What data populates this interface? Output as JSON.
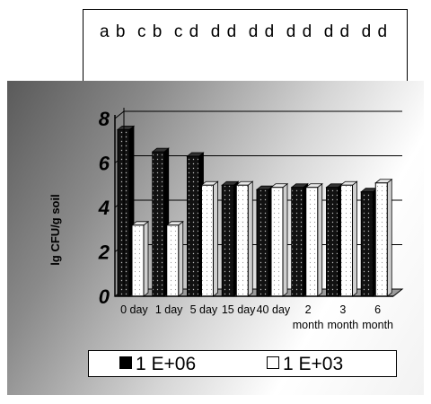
{
  "letters": "a b  c b  c d  d d  d d  d d  d d  d d",
  "chart_data": {
    "type": "bar",
    "ylabel": "lg CFU/g soil",
    "yticks": [
      "0",
      "2",
      "4",
      "6",
      "8"
    ],
    "ylim": [
      0,
      8
    ],
    "categories": [
      "0 day",
      "1 day",
      "5 day",
      "15 day",
      "40 day",
      "2 month",
      "3 month",
      "6 month"
    ],
    "series": [
      {
        "name": "1 E+06",
        "values": [
          7.5,
          6.5,
          6.3,
          5.0,
          4.8,
          4.9,
          4.9,
          4.7
        ]
      },
      {
        "name": "1 E+03",
        "values": [
          3.2,
          3.2,
          5.0,
          5.0,
          4.9,
          4.9,
          5.0,
          5.1
        ]
      }
    ],
    "grid": true,
    "legend": "bottom",
    "colors": {
      "series1": "#111111",
      "series2": "#ffffff"
    }
  }
}
